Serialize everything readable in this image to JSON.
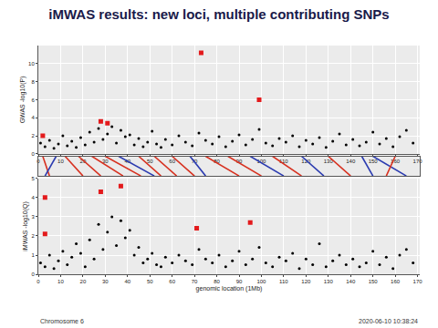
{
  "slide": {
    "title": "iMWAS results: new loci, multiple contributing SNPs",
    "timestamp": "2020-06-10 10:38:24"
  },
  "chart_data": [
    {
      "type": "scatter",
      "y_label": "GWAS -log10(P)",
      "xlim": [
        0,
        171
      ],
      "xticks": [
        0,
        10,
        20,
        30,
        40,
        50,
        60,
        70,
        80,
        90,
        100,
        110,
        120,
        130,
        140,
        150,
        160,
        170
      ],
      "ylim": [
        0,
        12
      ],
      "yticks": [
        0,
        2,
        4,
        6,
        8,
        10
      ],
      "grid": true,
      "series": [
        {
          "color": "#000000",
          "marker": "circle",
          "x": [
            1,
            3,
            5,
            7,
            9,
            11,
            13,
            15,
            17,
            19,
            21,
            23,
            25,
            27,
            29,
            31,
            33,
            35,
            37,
            39,
            41,
            43,
            45,
            47,
            49,
            51,
            53,
            55,
            57,
            60,
            63,
            66,
            69,
            72,
            75,
            78,
            81,
            84,
            87,
            90,
            93,
            96,
            99,
            102,
            105,
            108,
            111,
            114,
            117,
            120,
            123,
            126,
            129,
            132,
            135,
            138,
            141,
            144,
            147,
            150,
            153,
            156,
            159,
            162,
            165,
            168
          ],
          "values": [
            1.2,
            0.8,
            1.5,
            0.6,
            1.1,
            2.0,
            0.9,
            1.4,
            0.7,
            1.8,
            1.0,
            2.4,
            1.3,
            2.8,
            1.6,
            2.2,
            3.0,
            1.2,
            2.6,
            1.9,
            2.1,
            1.0,
            1.7,
            0.8,
            1.3,
            2.5,
            1.1,
            0.7,
            1.6,
            1.0,
            2.0,
            1.3,
            0.9,
            2.3,
            1.5,
            1.1,
            1.9,
            0.8,
            1.4,
            2.1,
            1.0,
            1.6,
            2.7,
            1.2,
            0.9,
            1.7,
            1.3,
            2.0,
            0.8,
            1.5,
            1.1,
            1.8,
            0.7,
            1.4,
            2.2,
            1.0,
            1.6,
            0.9,
            1.3,
            2.4,
            1.1,
            1.7,
            0.8,
            1.9,
            2.6,
            1.2
          ]
        },
        {
          "color": "#e31a1c",
          "marker": "square",
          "x": [
            2,
            28,
            31,
            73,
            99
          ],
          "values": [
            2.0,
            3.6,
            3.4,
            11.2,
            6.0
          ]
        }
      ]
    },
    {
      "type": "links",
      "xlim": [
        0,
        171
      ],
      "tick_labels": false,
      "links": [
        {
          "from": 2,
          "to": 5,
          "color": "#d7301f"
        },
        {
          "from": 8,
          "to": 3,
          "color": "#2b3bb0"
        },
        {
          "from": 12,
          "to": 20,
          "color": "#d7301f"
        },
        {
          "from": 18,
          "to": 28,
          "color": "#d7301f"
        },
        {
          "from": 24,
          "to": 38,
          "color": "#d7301f"
        },
        {
          "from": 30,
          "to": 46,
          "color": "#d7301f"
        },
        {
          "from": 36,
          "to": 52,
          "color": "#2b3bb0"
        },
        {
          "from": 45,
          "to": 55,
          "color": "#d7301f"
        },
        {
          "from": 52,
          "to": 62,
          "color": "#d7301f"
        },
        {
          "from": 60,
          "to": 70,
          "color": "#d7301f"
        },
        {
          "from": 68,
          "to": 75,
          "color": "#2b3bb0"
        },
        {
          "from": 75,
          "to": 90,
          "color": "#d7301f"
        },
        {
          "from": 85,
          "to": 100,
          "color": "#d7301f"
        },
        {
          "from": 95,
          "to": 110,
          "color": "#2b3bb0"
        },
        {
          "from": 105,
          "to": 118,
          "color": "#d7301f"
        },
        {
          "from": 118,
          "to": 128,
          "color": "#2b3bb0"
        },
        {
          "from": 130,
          "to": 140,
          "color": "#d7301f"
        },
        {
          "from": 145,
          "to": 150,
          "color": "#2b3bb0"
        },
        {
          "from": 150,
          "to": 165,
          "color": "#2b3bb0"
        },
        {
          "from": 160,
          "to": 156,
          "color": "#d7301f"
        }
      ]
    },
    {
      "type": "scatter",
      "y_label": "iMWAS -log10(Q)",
      "x_label": "genomic location (1Mb)",
      "annotation": "Chromosome 6",
      "xlim": [
        0,
        171
      ],
      "xticks": [
        0,
        10,
        20,
        30,
        40,
        50,
        60,
        70,
        80,
        90,
        100,
        110,
        120,
        130,
        140,
        150,
        160,
        170
      ],
      "ylim": [
        0,
        5
      ],
      "yticks": [
        0,
        1,
        2,
        3,
        4,
        5
      ],
      "grid": true,
      "series": [
        {
          "color": "#000000",
          "marker": "circle",
          "x": [
            1,
            3,
            5,
            7,
            9,
            11,
            13,
            15,
            17,
            19,
            21,
            23,
            25,
            27,
            29,
            31,
            33,
            35,
            37,
            39,
            41,
            43,
            45,
            47,
            49,
            51,
            53,
            55,
            57,
            60,
            63,
            66,
            69,
            72,
            75,
            78,
            81,
            84,
            87,
            90,
            93,
            96,
            99,
            102,
            105,
            108,
            111,
            114,
            117,
            120,
            123,
            126,
            129,
            132,
            135,
            138,
            141,
            144,
            147,
            150,
            153,
            156,
            159,
            162,
            165,
            168
          ],
          "values": [
            0.6,
            0.4,
            1.0,
            0.3,
            0.7,
            1.2,
            0.5,
            0.9,
            1.6,
            1.1,
            0.4,
            1.8,
            0.8,
            2.6,
            1.3,
            2.2,
            3.0,
            1.5,
            2.8,
            1.9,
            2.3,
            1.0,
            1.4,
            0.6,
            0.8,
            1.1,
            0.5,
            0.4,
            0.9,
            0.6,
            1.0,
            0.7,
            0.5,
            1.3,
            0.8,
            0.6,
            1.0,
            0.4,
            0.7,
            1.2,
            0.5,
            0.8,
            1.4,
            0.6,
            0.4,
            0.9,
            0.7,
            1.1,
            0.3,
            0.8,
            0.5,
            1.6,
            0.4,
            0.7,
            1.0,
            0.5,
            0.8,
            0.4,
            0.6,
            1.2,
            0.5,
            0.9,
            0.3,
            1.0,
            1.3,
            0.6
          ]
        },
        {
          "color": "#e31a1c",
          "marker": "square",
          "x": [
            3,
            3,
            28,
            37,
            71,
            95
          ],
          "values": [
            4.0,
            2.1,
            4.3,
            4.6,
            2.4,
            2.7
          ]
        }
      ]
    }
  ]
}
